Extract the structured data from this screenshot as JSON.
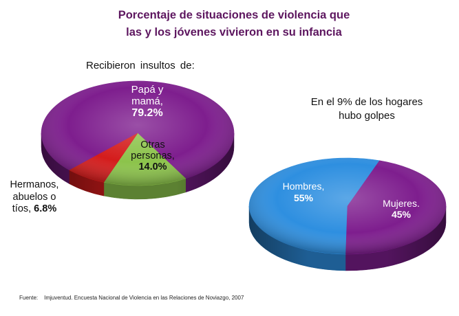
{
  "slide_title": {
    "lines": [
      "Porcentaje de situaciones de violencia que",
      "las y los jóvenes vivieron en su infancia"
    ],
    "color": "#5d165f"
  },
  "chart_data": [
    {
      "type": "pie",
      "title_lines": [
        "Recibieron insultos de:"
      ],
      "slices": [
        {
          "label_lines": [
            "Papá y",
            "mamá,"
          ],
          "value": 79.2,
          "value_label": "79.2%",
          "color": "#7e1e8e"
        },
        {
          "label_lines": [
            "Otras",
            "personas,"
          ],
          "value": 14.0,
          "value_label": "14.0%",
          "color": "#8cc34b"
        },
        {
          "label_lines": [
            "Hermanos,",
            "abuelos o",
            "tíos,"
          ],
          "value": 6.8,
          "value_label": "6.8%",
          "color": "#d41c1c"
        }
      ]
    },
    {
      "type": "pie",
      "title_lines": [
        "En el 9% de los hogares",
        "hubo golpes"
      ],
      "slices": [
        {
          "label_lines": [
            "Hombres,"
          ],
          "value": 55,
          "value_label": "55%",
          "color": "#2e8fe0"
        },
        {
          "label_lines": [
            "Mujeres."
          ],
          "value": 45,
          "value_label": "45%",
          "color": "#7e1e8e"
        }
      ]
    }
  ],
  "source": {
    "label": "Fuente:",
    "text": "Imjuventud. Encuesta Nacional de Violencia en las Relaciones de Noviazgo, 2007"
  }
}
